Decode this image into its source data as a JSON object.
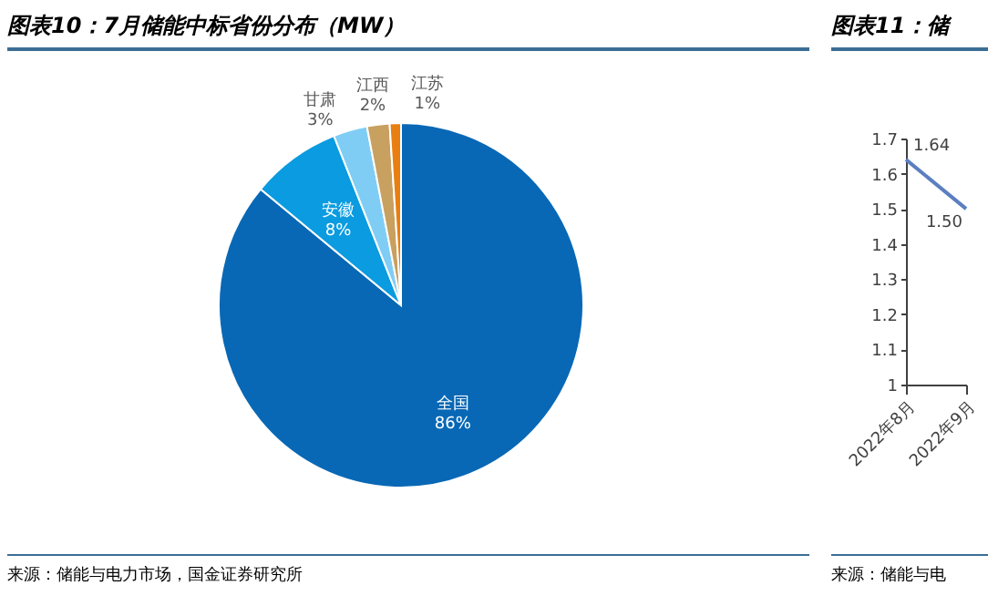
{
  "chart_data": [
    {
      "type": "pie",
      "title": "图表10：7月储能中标省份分布（MW）",
      "categories": [
        "全国",
        "安徽",
        "甘肃",
        "江西",
        "江苏"
      ],
      "values": [
        86,
        8,
        3,
        2,
        1
      ],
      "colors": [
        "#0868b5",
        "#0a9be0",
        "#7fcdf5",
        "#c8a060",
        "#e87f10"
      ],
      "value_labels": [
        "86%",
        "8%",
        "3%",
        "2%",
        "1%"
      ],
      "annotations": [
        "来源：储能与电力市场，国金证券研究所"
      ]
    },
    {
      "type": "line",
      "title": "图表11：储",
      "categories": [
        "2022年8月",
        "2022年9月"
      ],
      "series": [
        {
          "color": "#5b7fc0",
          "values": [
            1.64,
            1.5
          ],
          "value_labels": [
            "1.64",
            "1.50"
          ]
        }
      ],
      "ylim": [
        1,
        1.7
      ],
      "yticks": [
        1,
        1.1,
        1.2,
        1.3,
        1.4,
        1.5,
        1.6,
        1.7
      ],
      "grid": false,
      "annotations": [
        "来源：储能与电"
      ]
    }
  ]
}
